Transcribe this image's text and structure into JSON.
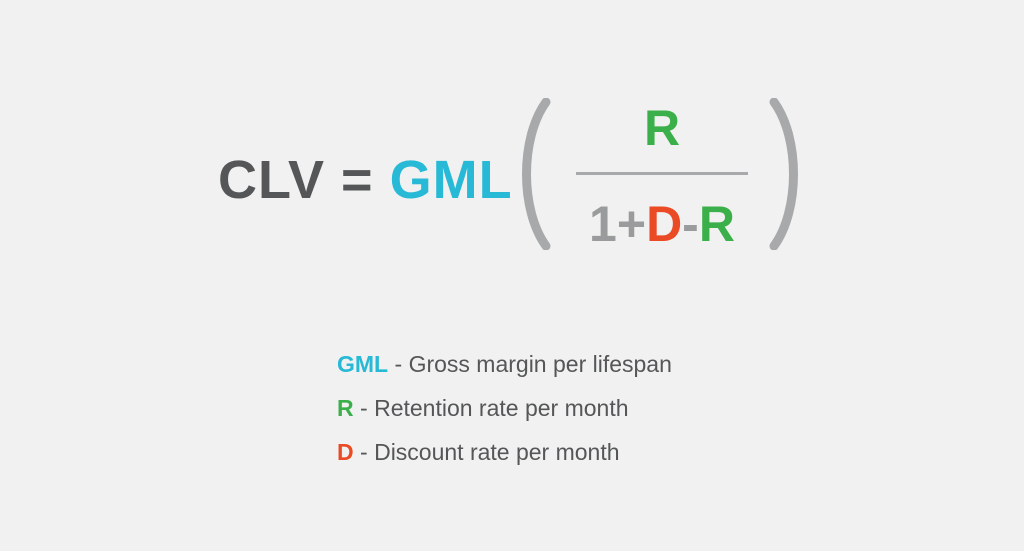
{
  "colors": {
    "background": "#f0f1f0",
    "dark_text": "#555657",
    "gray": "#9a9b9c",
    "gml": "#27b9d5",
    "retention": "#3bb04a",
    "discount": "#ea4a24",
    "bar": "#a8a9aa"
  },
  "formula": {
    "lhs": "CLV",
    "equals": "=",
    "gml": "GML",
    "numerator": "R",
    "denominator": {
      "one": "1",
      "plus": "+",
      "d": "D",
      "minus": "-",
      "r": "R"
    }
  },
  "legend": [
    {
      "key": "GML",
      "sep": " - ",
      "text": "Gross margin per lifespan",
      "color_key": "gml"
    },
    {
      "key": "R",
      "sep": " - ",
      "text": "Retention rate per month",
      "color_key": "retention"
    },
    {
      "key": "D",
      "sep": " - ",
      "text": "Discount rate per month",
      "color_key": "discount"
    }
  ]
}
